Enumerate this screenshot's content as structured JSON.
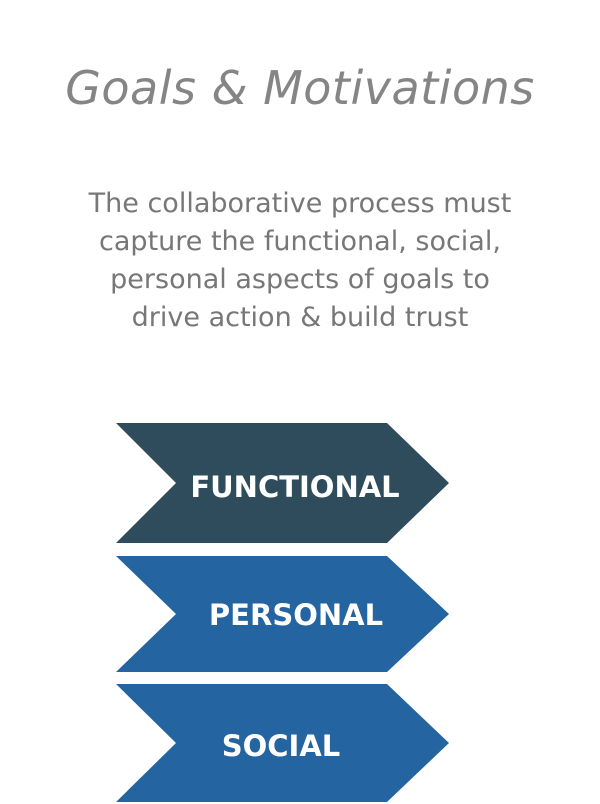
{
  "slide": {
    "title": "Goals & Motivations",
    "subtitle_lines": [
      "The collaborative process must",
      "capture the functional, social,",
      "personal aspects of goals to",
      "drive action & build trust"
    ]
  },
  "chevrons": [
    {
      "label": "FUNCTIONAL",
      "color": "#2e4c5c"
    },
    {
      "label": "PERSONAL",
      "color": "#2464a0"
    },
    {
      "label": "SOCIAL",
      "color": "#2464a0"
    }
  ]
}
